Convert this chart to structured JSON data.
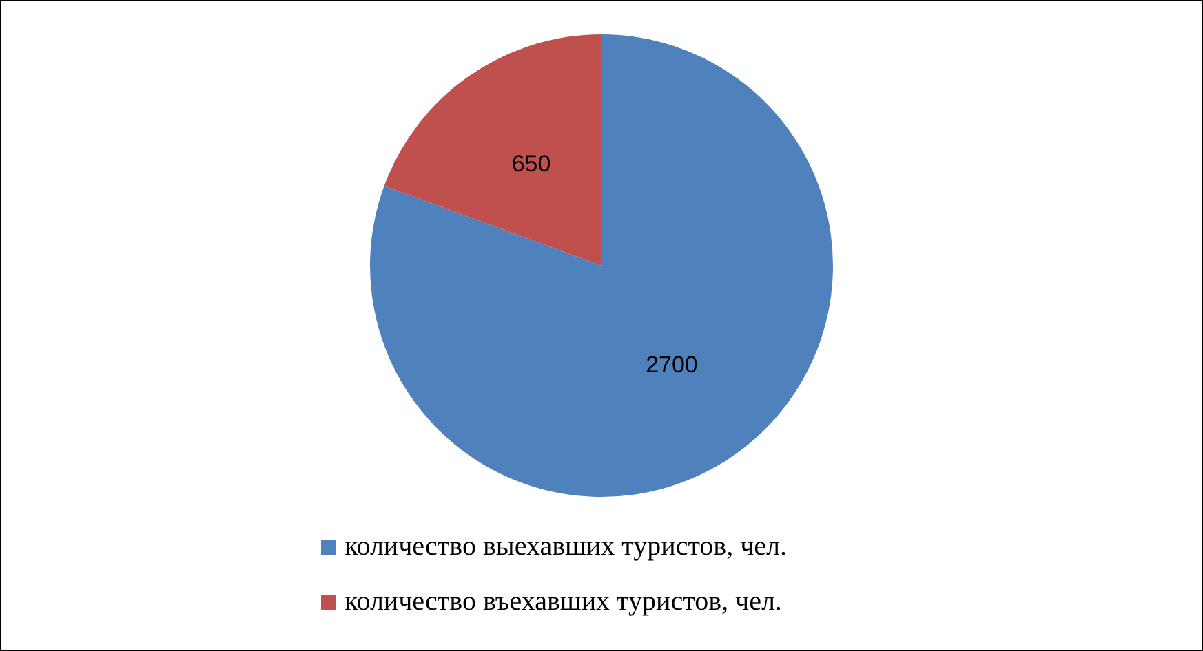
{
  "chart_data": {
    "type": "pie",
    "categories": [
      "количество выехавших туристов, чел.",
      "количество въехавших туристов, чел."
    ],
    "values": [
      2700,
      650
    ],
    "colors": [
      "#4f81bd",
      "#c0504d"
    ],
    "data_labels": true,
    "legend": "bottom"
  }
}
